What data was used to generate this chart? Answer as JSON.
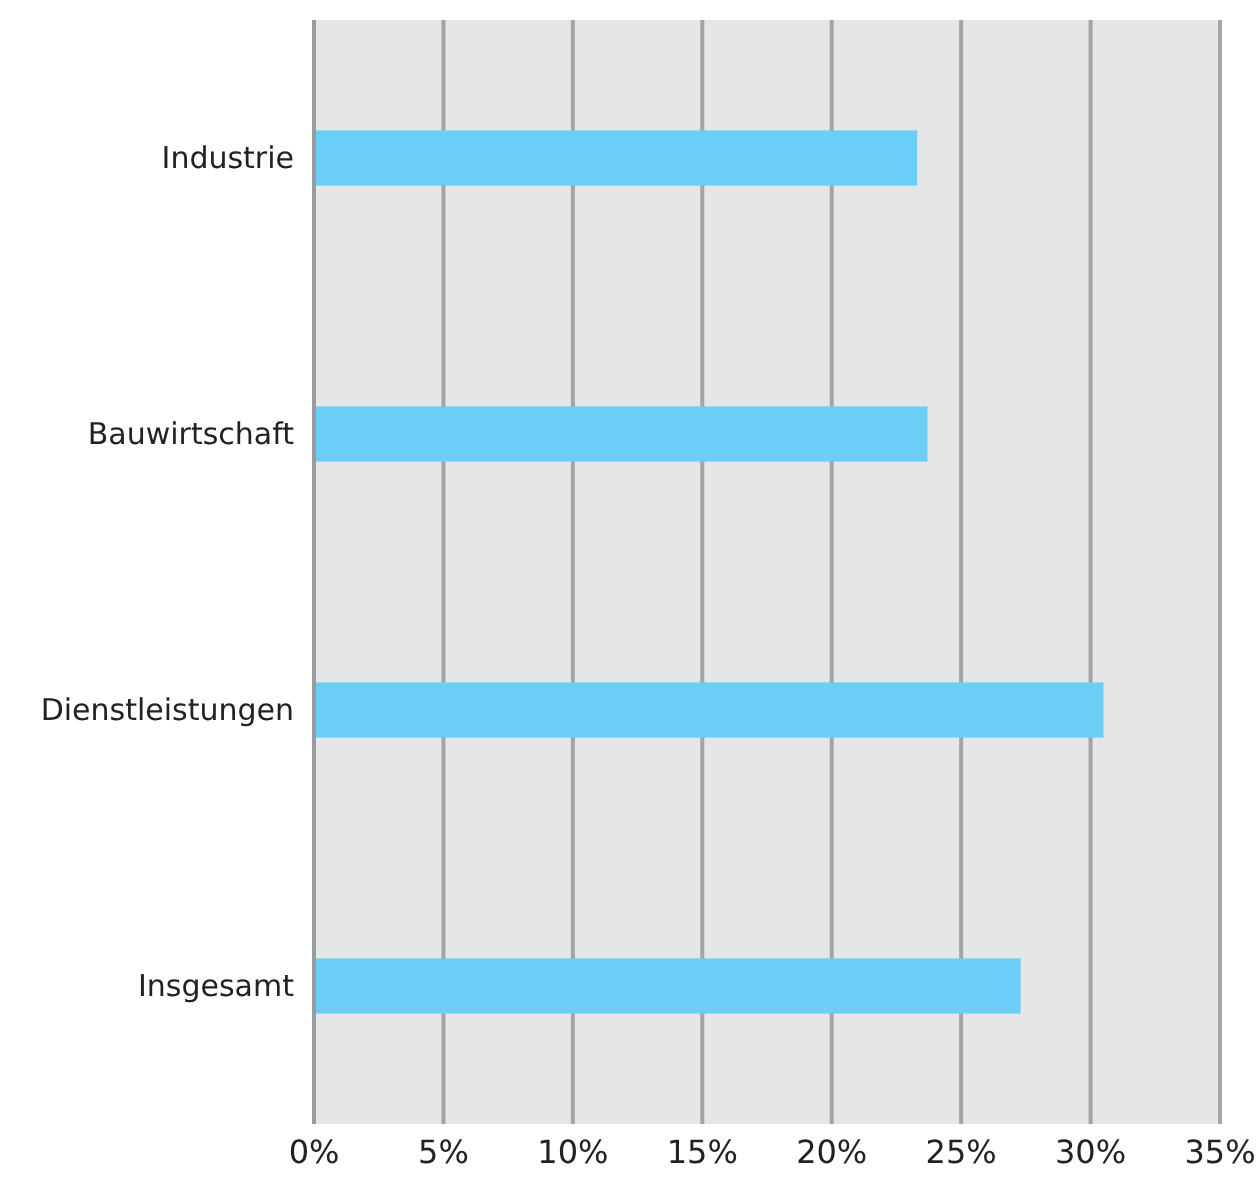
{
  "chart_data": {
    "type": "bar",
    "orientation": "horizontal",
    "categories": [
      "Industrie",
      "Bauwirtschaft",
      "Dienstleistungen",
      "Insgesamt"
    ],
    "values": [
      23.3,
      23.7,
      30.5,
      27.3
    ],
    "color": "#6acef6",
    "xlim": [
      0,
      35
    ],
    "xticks": [
      {
        "value": 0,
        "label": "0%"
      },
      {
        "value": 5,
        "label": "5%"
      },
      {
        "value": 10,
        "label": "10%"
      },
      {
        "value": 15,
        "label": "15%"
      },
      {
        "value": 20,
        "label": "20%"
      },
      {
        "value": 25,
        "label": "25%"
      },
      {
        "value": 30,
        "label": "30%"
      },
      {
        "value": 35,
        "label": "35%"
      }
    ],
    "grid": "x"
  }
}
